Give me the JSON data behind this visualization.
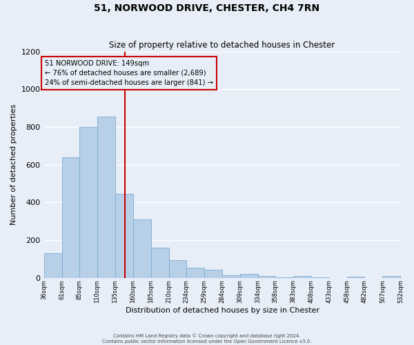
{
  "title": "51, NORWOOD DRIVE, CHESTER, CH4 7RN",
  "subtitle": "Size of property relative to detached houses in Chester",
  "xlabel": "Distribution of detached houses by size in Chester",
  "ylabel": "Number of detached properties",
  "bin_edges": [
    36,
    61,
    85,
    110,
    135,
    160,
    185,
    210,
    234,
    259,
    284,
    309,
    334,
    358,
    383,
    408,
    433,
    458,
    482,
    507,
    532
  ],
  "bin_counts": [
    130,
    640,
    800,
    855,
    445,
    310,
    158,
    95,
    52,
    42,
    15,
    20,
    8,
    3,
    10,
    2,
    0,
    7,
    0,
    10
  ],
  "bar_color": "#b8cfe8",
  "bar_edge_color": "#7aaad0",
  "property_size": 149,
  "vline_color": "#cc0000",
  "annotation_box_color": "#cc0000",
  "annotation_lines": [
    "51 NORWOOD DRIVE: 149sqm",
    "← 76% of detached houses are smaller (2,689)",
    "24% of semi-detached houses are larger (841) →"
  ],
  "ylim": [
    0,
    1200
  ],
  "yticks": [
    0,
    200,
    400,
    600,
    800,
    1000,
    1200
  ],
  "footer_lines": [
    "Contains HM Land Registry data © Crown copyright and database right 2024.",
    "Contains public sector information licensed under the Open Government Licence v3.0."
  ],
  "background_color": "#e8eef8",
  "grid_color": "#ffffff"
}
